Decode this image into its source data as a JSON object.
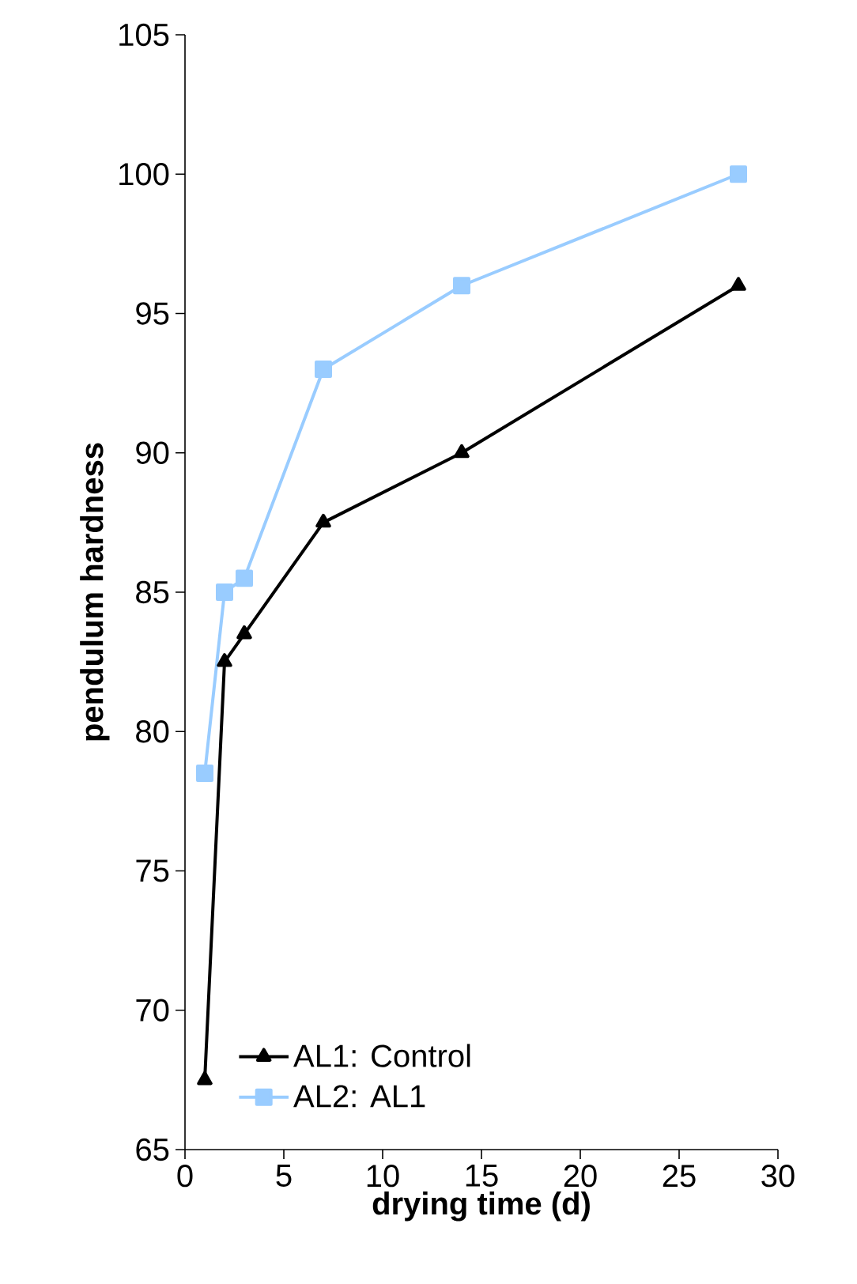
{
  "chart_data": {
    "type": "line",
    "xlabel": "drying time (d)",
    "ylabel": "pendulum hardness",
    "xlim": [
      0,
      30
    ],
    "xticks": [
      0,
      5,
      10,
      15,
      20,
      25,
      30
    ],
    "ylim": [
      65,
      105
    ],
    "yticks": [
      65,
      70,
      75,
      80,
      85,
      90,
      95,
      100,
      105
    ],
    "legend": "bottom left",
    "grid": false,
    "line_style": "solid",
    "series": [
      {
        "name": "AL1: Control",
        "color": "#000000",
        "marker": "triangle",
        "x": [
          1,
          2,
          3,
          7,
          14,
          28
        ],
        "values": [
          67.5,
          82.5,
          83.5,
          87.5,
          90,
          96
        ]
      },
      {
        "name": "AL2: AL1",
        "color": "#99ccff",
        "marker": "square",
        "x": [
          1,
          2,
          3,
          7,
          14,
          28
        ],
        "values": [
          78.5,
          85,
          85.5,
          93,
          96,
          100
        ]
      }
    ]
  }
}
